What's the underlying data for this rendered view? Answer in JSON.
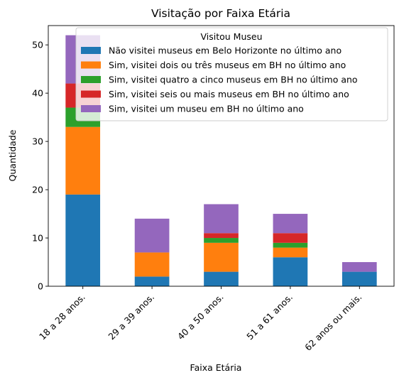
{
  "chart_data": {
    "type": "bar",
    "stacked": true,
    "title": "Visitação por Faixa Etária",
    "xlabel": "Faixa Etária",
    "ylabel": "Quantidade",
    "ylim": [
      0,
      54
    ],
    "yticks": [
      0,
      10,
      20,
      30,
      40,
      50
    ],
    "grid": false,
    "legend_title": "Visitou Museu",
    "legend_position": "top-right",
    "categories": [
      "18 a 28 anos.",
      "29 a 39 anos.",
      "40 a 50 anos.",
      "51 a 61 anos.",
      "62 anos ou mais."
    ],
    "series": [
      {
        "name": "Não visitei museus em Belo Horizonte no último ano",
        "color": "#1f77b4",
        "values": [
          19,
          2,
          3,
          6,
          3
        ]
      },
      {
        "name": "Sim, visitei dois ou três museus em BH no último ano",
        "color": "#ff7f0e",
        "values": [
          14,
          5,
          6,
          2,
          0
        ]
      },
      {
        "name": "Sim, visitei quatro a cinco museus em BH no último ano",
        "color": "#2ca02c",
        "values": [
          4,
          0,
          1,
          1,
          0
        ]
      },
      {
        "name": "Sim, visitei seis ou mais museus em BH no último ano",
        "color": "#d62728",
        "values": [
          5,
          0,
          1,
          2,
          0
        ]
      },
      {
        "name": "Sim, visitei um museu em BH no último ano",
        "color": "#9467bd",
        "values": [
          10,
          7,
          6,
          4,
          2
        ]
      }
    ]
  }
}
